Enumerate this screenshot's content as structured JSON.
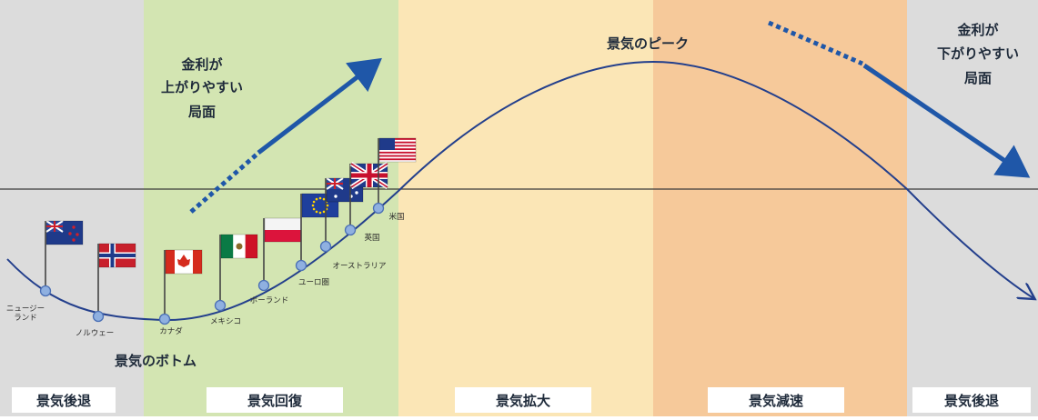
{
  "phases": [
    {
      "label": "景気後退",
      "color": "#dcdcdc"
    },
    {
      "label": "景気回復",
      "color": "#d3e5b2"
    },
    {
      "label": "景気拡大",
      "color": "#fbe6b6"
    },
    {
      "label": "景気減速",
      "color": "#f6c99a"
    },
    {
      "label": "景気後退",
      "color": "#dcdcdc"
    }
  ],
  "annotations": {
    "rate_up": [
      "金利が",
      "上がりやすい",
      "局面"
    ],
    "rate_down": [
      "金利が",
      "下がりやすい",
      "局面"
    ],
    "peak": "景気のピーク",
    "bottom": "景気のボトム"
  },
  "countries": [
    {
      "name": [
        "ニュージー",
        "ランド"
      ],
      "flag": "nz-flag"
    },
    {
      "name": [
        "ノルウェー"
      ],
      "flag": "norway-flag"
    },
    {
      "name": [
        "カナダ"
      ],
      "flag": "canada-flag"
    },
    {
      "name": [
        "メキシコ"
      ],
      "flag": "mexico-flag"
    },
    {
      "name": [
        "ポーランド"
      ],
      "flag": "poland-flag"
    },
    {
      "name": [
        "ユーロ圏"
      ],
      "flag": "eu-flag"
    },
    {
      "name": [
        "オーストラリア"
      ],
      "flag": "australia-flag"
    },
    {
      "name": [
        "英国"
      ],
      "flag": "uk-flag"
    },
    {
      "name": [
        "米国"
      ],
      "flag": "us-flag"
    }
  ],
  "colors": {
    "curve": "#233f8c",
    "arrow": "#1f57a8",
    "node": "#8fb0e0"
  }
}
